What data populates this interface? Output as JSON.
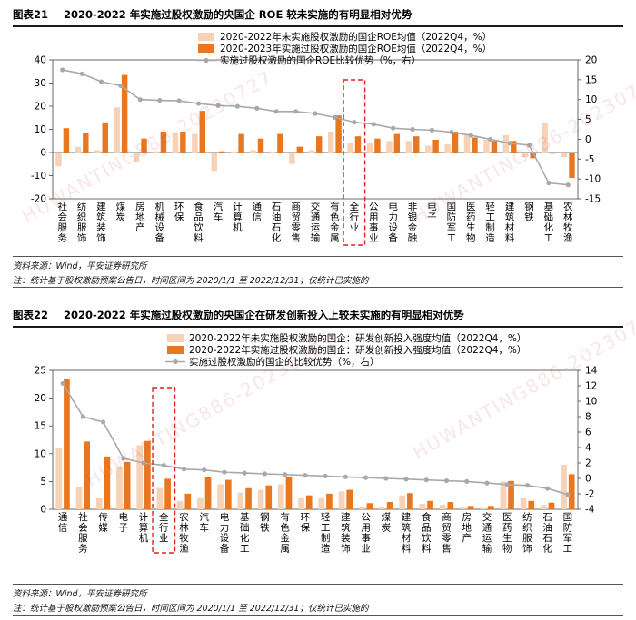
{
  "colors": {
    "bar_light": "#f6d2b6",
    "bar_dark": "#e87722",
    "line": "#a9a9a9",
    "highlight": "#e02020",
    "watermark": "rgba(200,60,60,0.13)"
  },
  "watermark_text": "HUWANTING886-20230727",
  "chart_data": [
    {
      "type": "bar",
      "figure_label": "图表21",
      "title": "2020-2022 年实施过股权激励的央国企 ROE 较未实施的有明显相对优势",
      "source": "资料来源：Wind，平安证券研究所",
      "footnote": "注：统计基于股权激励预案公告日，时间区间为 2020/1/1 至 2022/12/31；仅统计已实施的",
      "categories": [
        "社会服务",
        "纺织服饰",
        "建筑装饰",
        "煤炭",
        "房地产",
        "机械设备",
        "环保",
        "食品饮料",
        "汽车",
        "计算机",
        "通信",
        "石油石化",
        "商贸零售",
        "交通运输",
        "有色金属",
        "全行业",
        "公用事业",
        "电力设备",
        "非银金融",
        "电子",
        "国防军工",
        "医药生物",
        "轻工制造",
        "建筑材料",
        "钢铁",
        "基础化工",
        "农林牧渔"
      ],
      "highlight_category": "全行业",
      "series": [
        {
          "name": "2020-2022年未实施股权激励的国企ROE均值（2022Q4，%）",
          "kind": "bar",
          "axis": "left",
          "values": [
            -6,
            2.5,
            1,
            19.5,
            -4,
            0.5,
            8.5,
            8,
            -8,
            0.5,
            1,
            0.5,
            -5,
            1,
            9,
            4,
            4,
            5,
            5,
            3,
            3.5,
            8,
            5.5,
            7.5,
            -2,
            13,
            -2
          ]
        },
        {
          "name": "2020-2023年实施过股权激励的国企ROE均值（2022Q4，%）",
          "kind": "bar",
          "axis": "left",
          "values": [
            10.5,
            8.5,
            13,
            33.5,
            6,
            9,
            9,
            18,
            0.5,
            8,
            6,
            8,
            2.5,
            7,
            16,
            7,
            6,
            8,
            7,
            5.5,
            9,
            6.5,
            5,
            5,
            -2.5,
            -0.5,
            -11
          ]
        },
        {
          "name": "实施过股权激励的国企ROE比较优势（%，右）",
          "kind": "line",
          "axis": "right",
          "values": [
            17.5,
            16.5,
            14.5,
            13.5,
            10,
            9.8,
            9.7,
            9,
            8.5,
            8.3,
            7.8,
            7,
            7,
            6.5,
            5.5,
            4.3,
            3.8,
            2.8,
            2.5,
            2.3,
            1.8,
            1,
            0,
            -1,
            -1.5,
            -11,
            -11.5
          ]
        }
      ],
      "ylim_left": [
        -20,
        40
      ],
      "yticks_left": [
        -20,
        -10,
        0,
        10,
        20,
        30,
        40
      ],
      "ylim_right": [
        -15,
        20
      ],
      "yticks_right": [
        -15,
        -10,
        -5,
        0,
        5,
        10,
        15,
        20
      ],
      "legend_position": "top-center",
      "grid": false
    },
    {
      "type": "bar",
      "figure_label": "图表22",
      "title": "2020-2022 年实施过股权激励的央国企在研发创新投入上较未实施的有明显相对优势",
      "source": "资料来源：Wind，平安证券研究所",
      "footnote": "注：统计基于股权激励预案公告日，时间区间为 2020/1/1 至 2022/12/31；仅统计已实施的",
      "categories": [
        "通信",
        "社会服务",
        "传媒",
        "电子",
        "计算机",
        "全行业",
        "农林牧渔",
        "汽车",
        "电力设备",
        "基础化工",
        "钢铁",
        "有色金属",
        "环保",
        "轻工制造",
        "建筑装饰",
        "公用事业",
        "煤炭",
        "建筑材料",
        "食品饮料",
        "商贸零售",
        "房地产",
        "交通运输",
        "医药生物",
        "纺织服饰",
        "石油石化",
        "国防军工"
      ],
      "highlight_category": "全行业",
      "series": [
        {
          "name": "2020-2022年未实施股权激励的国企：研发创新投入强度均值（2022Q4，%）",
          "kind": "bar",
          "axis": "left",
          "values": [
            11,
            4,
            2,
            7.5,
            11.5,
            3.8,
            1.5,
            2,
            4.5,
            3,
            3.5,
            4.5,
            2,
            2,
            3.2,
            0.5,
            0.5,
            2.5,
            1,
            0.8,
            0.3,
            0.2,
            5,
            2,
            0.8,
            8
          ]
        },
        {
          "name": "2020-2022年实施过股权激励的国企：研发创新投入强度均值（2022Q4，%）",
          "kind": "bar",
          "axis": "left",
          "values": [
            23.5,
            12.2,
            9.5,
            8.5,
            12.3,
            5.5,
            2.8,
            5.8,
            5.3,
            3.8,
            4.3,
            5.9,
            2.5,
            2.8,
            3.5,
            1.1,
            1.3,
            2.9,
            1.5,
            1.3,
            0.6,
            0.6,
            5.1,
            1.5,
            1.2,
            6.3
          ]
        },
        {
          "name": "实施过股权激励的国企的比较优势（%，右）",
          "kind": "line",
          "axis": "right",
          "values": [
            12.3,
            8,
            7.3,
            2.6,
            2,
            1.7,
            1.2,
            1.1,
            0.8,
            0.7,
            0.6,
            0.5,
            0.4,
            0.3,
            0.2,
            0.1,
            0,
            -0.1,
            -0.2,
            -0.3,
            -0.4,
            -0.6,
            -0.8,
            -0.9,
            -1.3,
            -2.1
          ]
        }
      ],
      "ylim_left": [
        0,
        25
      ],
      "yticks_left": [
        0,
        5,
        10,
        15,
        20,
        25
      ],
      "ylim_right": [
        -4,
        14
      ],
      "yticks_right": [
        -4,
        -2,
        0,
        2,
        4,
        6,
        8,
        10,
        12,
        14
      ],
      "legend_position": "top-center",
      "grid": false
    }
  ]
}
